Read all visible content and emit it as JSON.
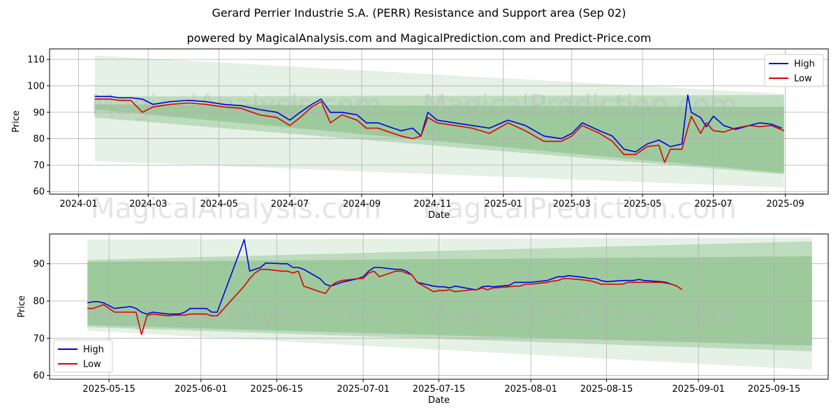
{
  "title": "Gerard Perrier Industrie S.A. (PERR) Resistance and Support area (Sep 02)",
  "subtitle": "powered by MagicalAnalysis.com and MagicalPrediction.com and Predict-Price.com",
  "watermarks": [
    "MagicalAnalysis.com",
    "MagicalPrediction.com"
  ],
  "colors": {
    "high": "#0000dd",
    "low": "#dd0000",
    "band_light": "#c8e6c9",
    "band_mid": "#a5d6a7",
    "band_dark": "#81c784"
  },
  "chart_data": [
    {
      "type": "line",
      "xlabel": "Date",
      "ylabel": "Price",
      "xticks": [
        "2024-01",
        "2024-03",
        "2024-05",
        "2024-07",
        "2024-09",
        "2024-11",
        "2025-01",
        "2025-03",
        "2025-05",
        "2025-07",
        "2025-09"
      ],
      "yticks": [
        60,
        70,
        80,
        90,
        100,
        110
      ],
      "xlim": [
        "2023-12-07",
        "2025-10-08"
      ],
      "ylim": [
        59,
        114
      ],
      "grid": true,
      "legend_position": "top-right",
      "bands": [
        {
          "x": [
            "2024-01-15",
            "2025-08-31"
          ],
          "upper": [
            111.5,
            97
          ],
          "lower": [
            71.5,
            61.5
          ]
        },
        {
          "x": [
            "2024-01-15",
            "2025-08-31"
          ],
          "upper": [
            96,
            96.5
          ],
          "lower": [
            88,
            66.5
          ]
        },
        {
          "x": [
            "2024-01-15",
            "2025-08-31"
          ],
          "upper": [
            93,
            92
          ],
          "lower": [
            91,
            67
          ]
        }
      ],
      "series": [
        {
          "name": "High",
          "x": [
            "2024-01-15",
            "2024-01-28",
            "2024-02-05",
            "2024-02-15",
            "2024-02-25",
            "2024-03-05",
            "2024-03-20",
            "2024-04-05",
            "2024-04-20",
            "2024-05-05",
            "2024-05-20",
            "2024-06-05",
            "2024-06-20",
            "2024-07-01",
            "2024-07-10",
            "2024-07-20",
            "2024-07-28",
            "2024-08-05",
            "2024-08-15",
            "2024-08-28",
            "2024-09-05",
            "2024-09-15",
            "2024-09-28",
            "2024-10-05",
            "2024-10-15",
            "2024-10-22",
            "2024-10-28",
            "2024-11-05",
            "2024-11-20",
            "2024-12-05",
            "2024-12-20",
            "2025-01-05",
            "2025-01-20",
            "2025-02-05",
            "2025-02-20",
            "2025-03-01",
            "2025-03-10",
            "2025-03-25",
            "2025-04-05",
            "2025-04-15",
            "2025-04-25",
            "2025-05-05",
            "2025-05-15",
            "2025-05-25",
            "2025-06-04",
            "2025-06-09",
            "2025-06-12",
            "2025-06-20",
            "2025-06-25",
            "2025-07-01",
            "2025-07-10",
            "2025-07-20",
            "2025-08-01",
            "2025-08-10",
            "2025-08-20",
            "2025-08-29"
          ],
          "values": [
            96,
            96,
            95.5,
            95.5,
            95,
            93,
            94,
            94.5,
            94,
            93,
            92.5,
            91,
            90,
            87,
            90,
            93,
            95,
            90,
            90,
            89,
            86,
            86,
            84,
            83,
            84,
            81,
            90,
            87,
            86,
            85,
            84,
            87,
            85,
            81,
            80,
            82,
            86,
            83,
            81,
            76,
            75,
            78,
            79.5,
            77,
            78,
            96.5,
            90,
            88,
            84.5,
            88.5,
            85,
            83.5,
            85,
            86,
            85.5,
            84
          ]
        },
        {
          "name": "Low",
          "x": [
            "2024-01-15",
            "2024-01-28",
            "2024-02-05",
            "2024-02-15",
            "2024-02-25",
            "2024-03-05",
            "2024-03-20",
            "2024-04-05",
            "2024-04-20",
            "2024-05-05",
            "2024-05-20",
            "2024-06-05",
            "2024-06-20",
            "2024-07-01",
            "2024-07-10",
            "2024-07-20",
            "2024-07-28",
            "2024-08-05",
            "2024-08-15",
            "2024-08-28",
            "2024-09-05",
            "2024-09-15",
            "2024-09-28",
            "2024-10-05",
            "2024-10-15",
            "2024-10-22",
            "2024-10-28",
            "2024-11-05",
            "2024-11-20",
            "2024-12-05",
            "2024-12-20",
            "2025-01-05",
            "2025-01-20",
            "2025-02-05",
            "2025-02-20",
            "2025-03-01",
            "2025-03-10",
            "2025-03-25",
            "2025-04-05",
            "2025-04-15",
            "2025-04-25",
            "2025-05-05",
            "2025-05-15",
            "2025-05-20",
            "2025-05-25",
            "2025-06-04",
            "2025-06-09",
            "2025-06-12",
            "2025-06-20",
            "2025-06-25",
            "2025-07-01",
            "2025-07-10",
            "2025-07-20",
            "2025-08-01",
            "2025-08-10",
            "2025-08-20",
            "2025-08-31"
          ],
          "values": [
            95,
            95,
            94.5,
            94.5,
            90,
            92,
            93,
            93.5,
            93,
            92,
            91.5,
            89,
            88,
            85,
            88,
            92,
            94,
            86,
            89,
            87,
            84,
            84,
            82,
            81,
            80,
            81,
            88,
            86,
            85,
            84,
            82,
            86,
            83,
            79,
            79,
            81,
            85,
            82,
            79,
            74,
            74,
            77,
            77.5,
            71,
            76,
            76,
            84,
            88.5,
            82,
            86,
            83,
            82.5,
            84,
            85,
            84.5,
            85,
            83
          ]
        }
      ]
    },
    {
      "type": "line",
      "xlabel": "Date",
      "ylabel": "Price",
      "xticks": [
        "2025-05-15",
        "2025-06-01",
        "2025-06-15",
        "2025-07-01",
        "2025-07-15",
        "2025-08-01",
        "2025-08-15",
        "2025-09-01",
        "2025-09-15"
      ],
      "yticks": [
        60,
        70,
        80,
        90
      ],
      "xlim": [
        "2025-05-04",
        "2025-09-25"
      ],
      "ylim": [
        59,
        98
      ],
      "grid": true,
      "legend_position": "bottom-left",
      "bands": [
        {
          "x": [
            "2025-05-11",
            "2025-09-22"
          ],
          "upper": [
            96.5,
            97
          ],
          "lower": [
            72,
            61.5
          ]
        },
        {
          "x": [
            "2025-05-11",
            "2025-09-22"
          ],
          "upper": [
            91,
            96
          ],
          "lower": [
            73,
            66.5
          ]
        },
        {
          "x": [
            "2025-05-11",
            "2025-09-22"
          ],
          "upper": [
            90.5,
            92
          ],
          "lower": [
            73.5,
            68
          ]
        }
      ],
      "series": [
        {
          "name": "High",
          "x": [
            "2025-05-11",
            "2025-05-12",
            "2025-05-13",
            "2025-05-14",
            "2025-05-16",
            "2025-05-19",
            "2025-05-20",
            "2025-05-21",
            "2025-05-22",
            "2025-05-23",
            "2025-05-26",
            "2025-05-27",
            "2025-05-28",
            "2025-05-29",
            "2025-05-30",
            "2025-06-02",
            "2025-06-03",
            "2025-06-04",
            "2025-06-09",
            "2025-06-10",
            "2025-06-12",
            "2025-06-13",
            "2025-06-16",
            "2025-06-17",
            "2025-06-18",
            "2025-06-19",
            "2025-06-20",
            "2025-06-23",
            "2025-06-24",
            "2025-06-25",
            "2025-06-26",
            "2025-06-27",
            "2025-06-30",
            "2025-07-01",
            "2025-07-02",
            "2025-07-03",
            "2025-07-04",
            "2025-07-07",
            "2025-07-08",
            "2025-07-09",
            "2025-07-10",
            "2025-07-11",
            "2025-07-14",
            "2025-07-15",
            "2025-07-16",
            "2025-07-17",
            "2025-07-18",
            "2025-07-21",
            "2025-07-22",
            "2025-07-23",
            "2025-07-24",
            "2025-07-25",
            "2025-07-28",
            "2025-07-29",
            "2025-07-30",
            "2025-07-31",
            "2025-08-01",
            "2025-08-04",
            "2025-08-05",
            "2025-08-06",
            "2025-08-07",
            "2025-08-08",
            "2025-08-11",
            "2025-08-12",
            "2025-08-13",
            "2025-08-14",
            "2025-08-15",
            "2025-08-18",
            "2025-08-19",
            "2025-08-20",
            "2025-08-21",
            "2025-08-22",
            "2025-08-25",
            "2025-08-26",
            "2025-08-27",
            "2025-08-28"
          ],
          "values": [
            79.5,
            79.8,
            79.8,
            79.5,
            78,
            78.5,
            78,
            77,
            76.5,
            77,
            76.5,
            76.5,
            76.5,
            77,
            78,
            78,
            77,
            77,
            96.5,
            88,
            89,
            90.2,
            90,
            90,
            89,
            89,
            88.5,
            86,
            84.5,
            84,
            84.5,
            85,
            86,
            86.5,
            88,
            89,
            89,
            88.5,
            88.5,
            88,
            87,
            85,
            84,
            83.8,
            83.8,
            83.5,
            84,
            83.2,
            83,
            83.8,
            84,
            83.8,
            84.2,
            85,
            85,
            85,
            85,
            85.5,
            86,
            86.5,
            86.5,
            86.8,
            86.3,
            86,
            86,
            85.5,
            85.2,
            85.5,
            85.5,
            85.5,
            85.8,
            85.5,
            85.2,
            85,
            84.5,
            84
          ]
        },
        {
          "name": "Low",
          "x": [
            "2025-05-11",
            "2025-05-12",
            "2025-05-13",
            "2025-05-14",
            "2025-05-16",
            "2025-05-19",
            "2025-05-20",
            "2025-05-21",
            "2025-05-22",
            "2025-05-23",
            "2025-05-26",
            "2025-05-27",
            "2025-05-28",
            "2025-05-29",
            "2025-05-30",
            "2025-06-02",
            "2025-06-03",
            "2025-06-04",
            "2025-06-09",
            "2025-06-10",
            "2025-06-11",
            "2025-06-12",
            "2025-06-13",
            "2025-06-16",
            "2025-06-17",
            "2025-06-18",
            "2025-06-19",
            "2025-06-20",
            "2025-06-23",
            "2025-06-24",
            "2025-06-25",
            "2025-06-26",
            "2025-06-27",
            "2025-06-30",
            "2025-07-01",
            "2025-07-02",
            "2025-07-03",
            "2025-07-04",
            "2025-07-07",
            "2025-07-08",
            "2025-07-09",
            "2025-07-10",
            "2025-07-11",
            "2025-07-14",
            "2025-07-15",
            "2025-07-16",
            "2025-07-17",
            "2025-07-18",
            "2025-07-21",
            "2025-07-22",
            "2025-07-23",
            "2025-07-24",
            "2025-07-25",
            "2025-07-28",
            "2025-07-29",
            "2025-07-30",
            "2025-07-31",
            "2025-08-01",
            "2025-08-04",
            "2025-08-05",
            "2025-08-06",
            "2025-08-07",
            "2025-08-08",
            "2025-08-11",
            "2025-08-12",
            "2025-08-13",
            "2025-08-14",
            "2025-08-15",
            "2025-08-18",
            "2025-08-19",
            "2025-08-20",
            "2025-08-21",
            "2025-08-22",
            "2025-08-25",
            "2025-08-26",
            "2025-08-27",
            "2025-08-28",
            "2025-08-29"
          ],
          "values": [
            78,
            78,
            78.5,
            79,
            77,
            77,
            77,
            71,
            76,
            76.5,
            76,
            76.2,
            76.2,
            76.2,
            76.5,
            76.5,
            76,
            76,
            84,
            86,
            87.5,
            88.5,
            88.5,
            88,
            88,
            87.5,
            88,
            84,
            82.5,
            82,
            84,
            85,
            85.5,
            86,
            86,
            87.5,
            88,
            86.5,
            88,
            88,
            87.5,
            87,
            85,
            82.5,
            82.8,
            82.8,
            83,
            82.5,
            83,
            83,
            83.5,
            83,
            83.5,
            83.8,
            84,
            84,
            84.5,
            84.5,
            85,
            85.3,
            85.5,
            86,
            86,
            85.6,
            85.4,
            85,
            84.5,
            84.5,
            84.5,
            85,
            85,
            85,
            85,
            85,
            84.8,
            84.5,
            84,
            83
          ]
        }
      ]
    }
  ]
}
